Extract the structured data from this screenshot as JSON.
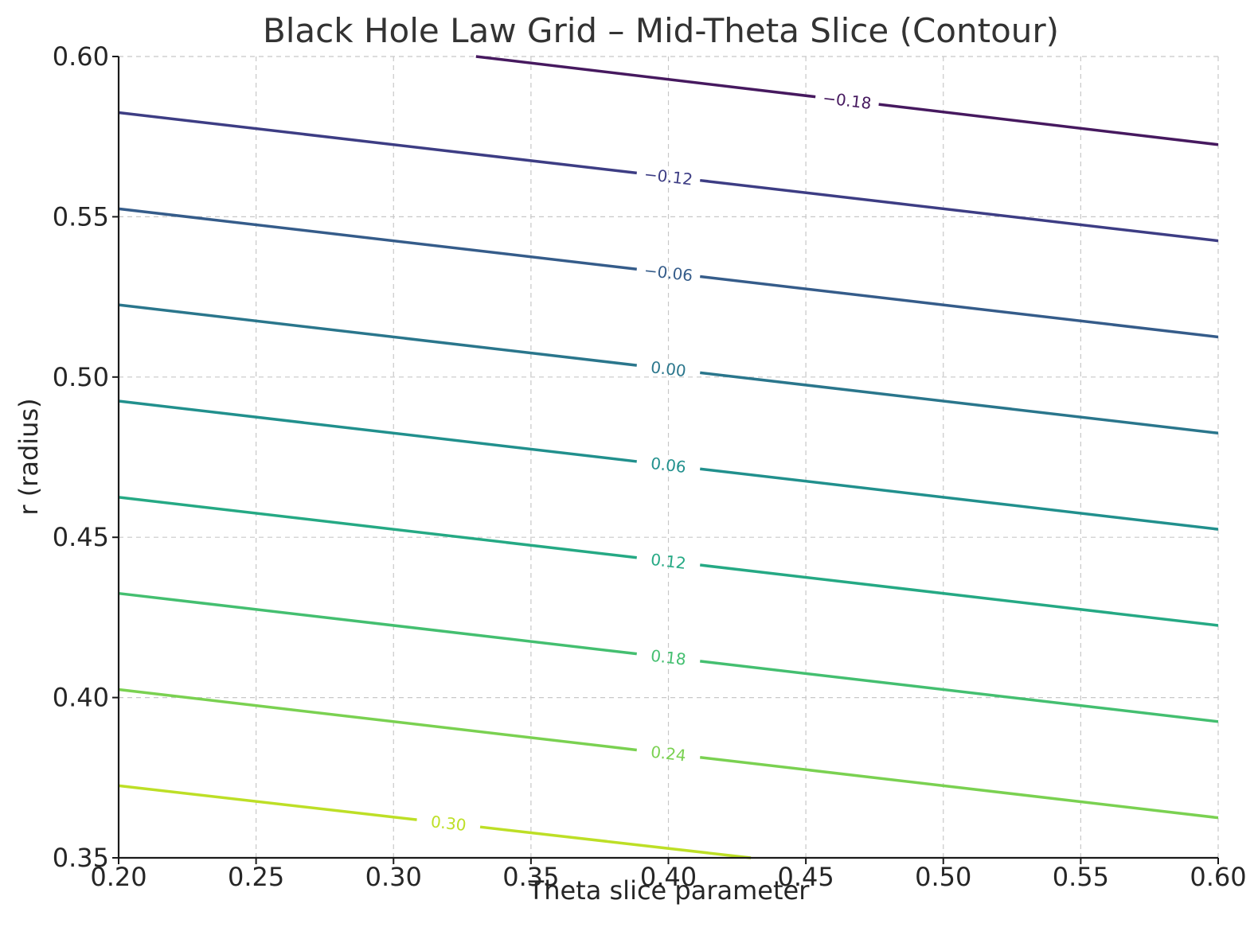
{
  "chart_data": {
    "type": "contour",
    "title": "Black Hole Law Grid – Mid-Theta Slice (Contour)",
    "xlabel": "Theta slice parameter",
    "ylabel": "r (radius)",
    "xlim": [
      0.2,
      0.6
    ],
    "ylim": [
      0.35,
      0.6
    ],
    "x_ticks": [
      0.2,
      0.25,
      0.3,
      0.35,
      0.4,
      0.45,
      0.5,
      0.55,
      0.6
    ],
    "y_ticks": [
      0.35,
      0.4,
      0.45,
      0.5,
      0.55,
      0.6
    ],
    "x_tick_labels": [
      "0.20",
      "0.25",
      "0.30",
      "0.35",
      "0.40",
      "0.45",
      "0.50",
      "0.55",
      "0.60"
    ],
    "y_tick_labels": [
      "0.35",
      "0.40",
      "0.45",
      "0.50",
      "0.55",
      "0.60"
    ],
    "grid": true,
    "colormap": "viridis",
    "contours": [
      {
        "level": -0.18,
        "label": "−0.18",
        "color": "#46195f",
        "x": [
          0.33,
          0.6
        ],
        "y": [
          0.6,
          0.5725
        ]
      },
      {
        "level": -0.12,
        "label": "−0.12",
        "color": "#3d3d84",
        "x": [
          0.2,
          0.6
        ],
        "y": [
          0.5825,
          0.5425
        ]
      },
      {
        "level": -0.06,
        "label": "−0.06",
        "color": "#355c8a",
        "x": [
          0.2,
          0.6
        ],
        "y": [
          0.5525,
          0.5125
        ]
      },
      {
        "level": 0.0,
        "label": "0.00",
        "color": "#2a768c",
        "x": [
          0.2,
          0.6
        ],
        "y": [
          0.5225,
          0.4825
        ]
      },
      {
        "level": 0.06,
        "label": "0.06",
        "color": "#21908d",
        "x": [
          0.2,
          0.6
        ],
        "y": [
          0.4925,
          0.4525
        ]
      },
      {
        "level": 0.12,
        "label": "0.12",
        "color": "#25a984",
        "x": [
          0.2,
          0.6
        ],
        "y": [
          0.4625,
          0.4225
        ]
      },
      {
        "level": 0.18,
        "label": "0.18",
        "color": "#44bf70",
        "x": [
          0.2,
          0.6
        ],
        "y": [
          0.4325,
          0.3925
        ]
      },
      {
        "level": 0.24,
        "label": "0.24",
        "color": "#7ad151",
        "x": [
          0.2,
          0.6
        ],
        "y": [
          0.4025,
          0.3625
        ]
      },
      {
        "level": 0.3,
        "label": "0.30",
        "color": "#bddf26",
        "x": [
          0.2,
          0.43
        ],
        "y": [
          0.3725,
          0.35
        ]
      }
    ]
  }
}
